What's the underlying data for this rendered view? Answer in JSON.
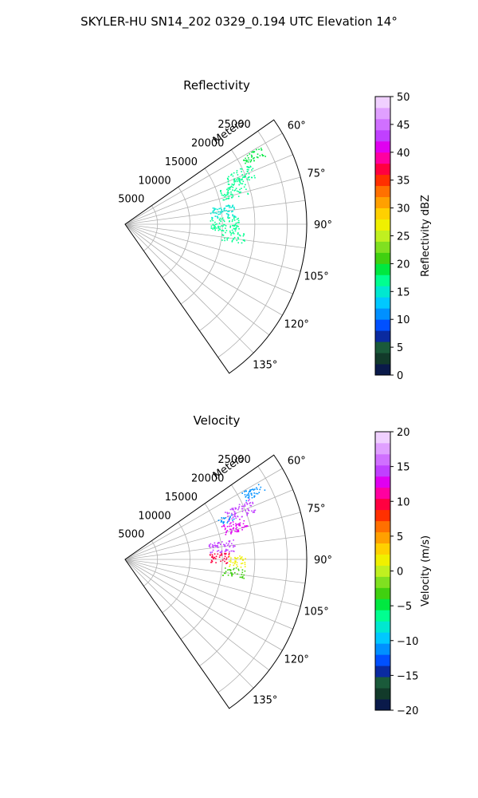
{
  "figure": {
    "title": "SKYLER-HU  SN14_202  0329_0.194 UTC Elevation 14°"
  },
  "chart_data": [
    {
      "type": "scatter",
      "projection": "polar-sector",
      "title": "Reflectivity",
      "range_label": "Meters",
      "range_ticks": [
        5000,
        10000,
        15000,
        20000,
        25000
      ],
      "range_tick_labels": [
        "5000",
        "10000",
        "15000",
        "20000",
        "25000"
      ],
      "rmax": 28000,
      "theta_range_deg": [
        55,
        145
      ],
      "theta_ticks": [
        60,
        75,
        90,
        105,
        120,
        135
      ],
      "theta_tick_labels": [
        "60°",
        "75°",
        "90°",
        "105°",
        "120°",
        "135°"
      ],
      "grid": true,
      "colorbar": {
        "label": "Reflectivity dBZ",
        "min": 0,
        "max": 50,
        "ticks": [
          0,
          5,
          10,
          15,
          20,
          25,
          30,
          35,
          40,
          45,
          50
        ],
        "tick_labels": [
          "0",
          "5",
          "10",
          "15",
          "20",
          "25",
          "30",
          "35",
          "40",
          "45",
          "50"
        ],
        "colors": [
          "#0a1a4a",
          "#123a2a",
          "#1a5a3a",
          "#0a2aa0",
          "#0050ff",
          "#0090ff",
          "#00c8ff",
          "#00e8d0",
          "#00ff90",
          "#00e840",
          "#40d010",
          "#80e020",
          "#c0f020",
          "#f0f000",
          "#ffd000",
          "#ffa000",
          "#ff7000",
          "#ff3000",
          "#ff0040",
          "#ff00a0",
          "#e000f0",
          "#c040ff",
          "#d070ff",
          "#e0a0ff",
          "#f0d0ff"
        ]
      },
      "echo_clusters": [
        {
          "az": [
            60.0,
            64.0
          ],
          "range": [
            20500,
            24000
          ],
          "value": 19,
          "density": 0.65
        },
        {
          "az": [
            64.0,
            70.0
          ],
          "range": [
            17000,
            21500
          ],
          "value": 17,
          "density": 0.6
        },
        {
          "az": [
            70.0,
            76.0
          ],
          "range": [
            15500,
            19500
          ],
          "value": 16,
          "density": 0.55
        },
        {
          "az": [
            79.0,
            86.0
          ],
          "range": [
            13000,
            17000
          ],
          "value": 15,
          "density": 0.5
        },
        {
          "az": [
            86.0,
            94.0
          ],
          "range": [
            13000,
            17500
          ],
          "value": 16,
          "density": 0.5
        },
        {
          "az": [
            94.0,
            99.0
          ],
          "range": [
            15000,
            18500
          ],
          "value": 17,
          "density": 0.45
        }
      ]
    },
    {
      "type": "scatter",
      "projection": "polar-sector",
      "title": "Velocity",
      "range_label": "Meters",
      "range_ticks": [
        5000,
        10000,
        15000,
        20000,
        25000
      ],
      "range_tick_labels": [
        "5000",
        "10000",
        "15000",
        "20000",
        "25000"
      ],
      "rmax": 28000,
      "theta_range_deg": [
        55,
        145
      ],
      "theta_ticks": [
        60,
        75,
        90,
        105,
        120,
        135
      ],
      "theta_tick_labels": [
        "60°",
        "75°",
        "90°",
        "105°",
        "120°",
        "135°"
      ],
      "grid": true,
      "colorbar": {
        "label": "Velocity (m/s)",
        "min": -20,
        "max": 20,
        "ticks": [
          -20,
          -15,
          -10,
          -5,
          0,
          5,
          10,
          15,
          20
        ],
        "tick_labels": [
          "−20",
          "−15",
          "−10",
          "−5",
          "0",
          "5",
          "10",
          "15",
          "20"
        ],
        "colors": [
          "#0a1a4a",
          "#123a2a",
          "#1a5a3a",
          "#0a2aa0",
          "#0050ff",
          "#0090ff",
          "#00c8ff",
          "#00e8d0",
          "#00ff90",
          "#00e840",
          "#40d010",
          "#80e020",
          "#c0f020",
          "#f0f000",
          "#ffd000",
          "#ffa000",
          "#ff7000",
          "#ff3000",
          "#ff0040",
          "#ff00a0",
          "#e000f0",
          "#c040ff",
          "#d070ff",
          "#e0a0ff",
          "#f0d0ff"
        ]
      },
      "echo_clusters": [
        {
          "az": [
            60.0,
            64.0
          ],
          "range": [
            20500,
            24000
          ],
          "value": -11,
          "density": 0.65
        },
        {
          "az": [
            64.0,
            70.0
          ],
          "range": [
            17000,
            21500
          ],
          "value": 14,
          "density": 0.6
        },
        {
          "az": [
            66.0,
            70.0
          ],
          "range": [
            15500,
            18000
          ],
          "value": -12,
          "density": 0.5
        },
        {
          "az": [
            70.0,
            76.0
          ],
          "range": [
            15500,
            19500
          ],
          "value": 13,
          "density": 0.55
        },
        {
          "az": [
            79.0,
            86.0
          ],
          "range": [
            13000,
            17000
          ],
          "value": 14,
          "density": 0.5
        },
        {
          "az": [
            86.0,
            92.0
          ],
          "range": [
            13000,
            16000
          ],
          "value": 9,
          "density": 0.5
        },
        {
          "az": [
            88.0,
            94.0
          ],
          "range": [
            15500,
            18500
          ],
          "value": 2,
          "density": 0.45
        },
        {
          "az": [
            94.0,
            99.0
          ],
          "range": [
            15000,
            18500
          ],
          "value": -3,
          "density": 0.45
        }
      ]
    }
  ]
}
